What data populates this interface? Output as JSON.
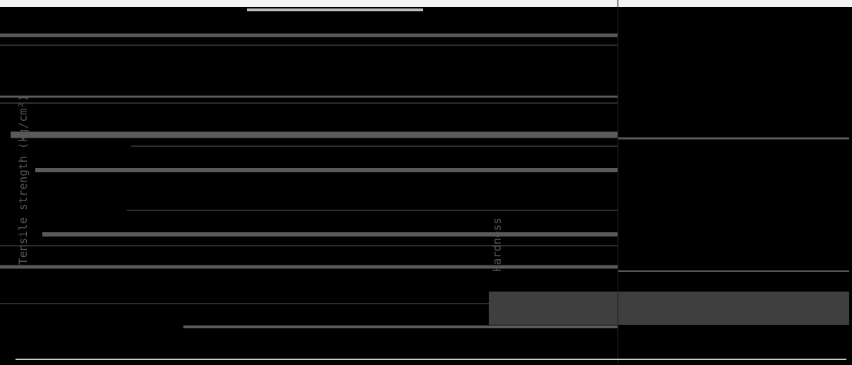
{
  "left_axis": {
    "label": "Tensile strength (kg/cm²)"
  },
  "right_axis": {
    "label": "Hardness"
  }
}
